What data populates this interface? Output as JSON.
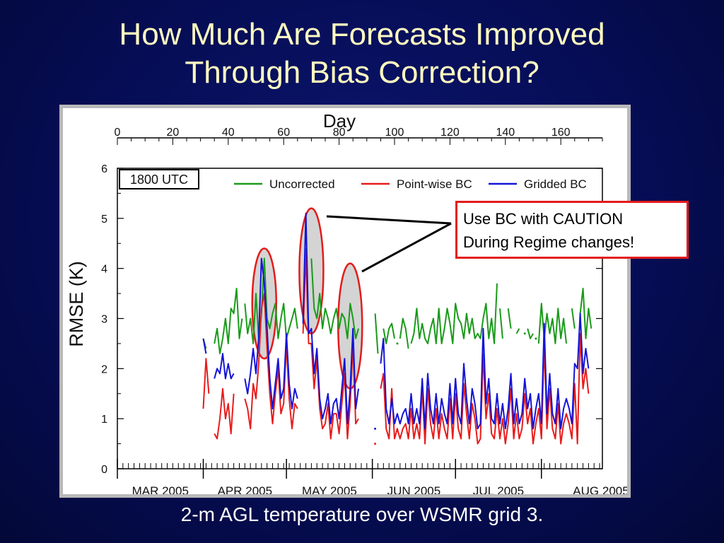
{
  "slide": {
    "title_line1": "How Much Are Forecasts Improved",
    "title_line2": "Through Bias Correction?",
    "caption": "2-m AGL temperature over WSMR grid 3."
  },
  "callout": {
    "line1": "Use BC with CAUTION",
    "line2": "During Regime changes!"
  },
  "colors": {
    "uncorrected": "#1a9a1a",
    "pointwise": "#e81c1c",
    "gridded": "#1414d6",
    "highlight_ring": "#e41b1b",
    "title": "#fffcc0"
  },
  "chart_data": {
    "type": "line",
    "top_axis_title": "Day",
    "ylabel": "RMSE (K)",
    "panel_label": "1800 UTC",
    "xlim": [
      0,
      175
    ],
    "ylim": [
      0,
      6
    ],
    "top_ticks": [
      0,
      20,
      40,
      60,
      80,
      100,
      120,
      140,
      160
    ],
    "y_ticks": [
      0,
      1,
      2,
      3,
      4,
      5,
      6
    ],
    "month_labels": [
      {
        "label": "MAR 2005",
        "day": 59
      },
      {
        "label": "APR 2005",
        "day": 90
      },
      {
        "label": "MAY 2005",
        "day": 120
      },
      {
        "label": "JUN 2005",
        "day": 151
      },
      {
        "label": "JUL 2005",
        "day": 181
      },
      {
        "label": "AUG 2005",
        "day": 212
      }
    ],
    "legend_position": "top",
    "highlight_days": [
      53,
      70,
      84
    ],
    "series": [
      {
        "name": "Uncorrected",
        "segments": [
          {
            "start": 31,
            "values": [
              2.6,
              2.4
            ]
          },
          {
            "start": 35,
            "values": [
              2.5,
              2.8,
              2.3,
              2.6,
              3.0,
              2.5,
              3.2,
              3.1,
              3.6,
              2.6,
              3.0
            ]
          },
          {
            "start": 46,
            "values": [
              3.3,
              2.7,
              3.0,
              2.5,
              3.5,
              2.6,
              3.1,
              4.2,
              3.0,
              2.8,
              3.1,
              3.3,
              2.6,
              3.0,
              3.3,
              2.6,
              2.8,
              3.0,
              3.2,
              2.8
            ]
          },
          {
            "start": 67,
            "values": [
              3.0,
              4.4
            ]
          },
          {
            "start": 70,
            "values": [
              4.2,
              3.2,
              3.0,
              3.5,
              2.8,
              3.2,
              3.0,
              2.7,
              3.0,
              3.2,
              2.8,
              3.1,
              3.0,
              2.6,
              3.3,
              3.0,
              2.6,
              2.8
            ]
          },
          {
            "start": 93,
            "values": [
              3.1,
              2.3
            ]
          },
          {
            "start": 96,
            "values": [
              2.8,
              2.5,
              2.8,
              2.9,
              2.6
            ]
          },
          {
            "start": 101,
            "values": [
              2.5
            ]
          },
          {
            "start": 102,
            "values": [
              2.6,
              3.0,
              2.8,
              2.4
            ]
          },
          {
            "start": 106,
            "values": [
              2.5,
              2.7,
              3.2,
              2.6,
              2.9,
              2.6,
              2.5,
              2.8,
              3.0,
              2.5,
              3.2,
              2.5,
              2.8,
              3.2,
              2.9,
              2.5,
              3.3,
              3.0,
              2.9,
              2.6,
              3.1,
              2.7,
              3.0,
              2.6,
              2.7,
              2.6,
              3.0,
              3.3,
              2.6,
              3.0,
              2.5,
              3.7
            ]
          },
          {
            "start": 138,
            "values": [
              3.2,
              2.6
            ]
          },
          {
            "start": 141,
            "values": [
              3.2,
              2.8
            ]
          },
          {
            "start": 144,
            "values": [
              2.7,
              2.8
            ]
          },
          {
            "start": 147,
            "values": [
              2.7
            ]
          },
          {
            "start": 148,
            "values": [
              2.8,
              2.6,
              2.7
            ]
          },
          {
            "start": 151,
            "values": [
              2.6
            ]
          },
          {
            "start": 152,
            "values": [
              2.5,
              3.3,
              2.6,
              3.1,
              2.7,
              3.0,
              2.5,
              3.2,
              2.6,
              3.0,
              2.5
            ]
          },
          {
            "start": 164,
            "values": [
              3.2,
              2.8
            ]
          },
          {
            "start": 167,
            "values": [
              3.1,
              3.6,
              2.6,
              3.2,
              2.8
            ]
          }
        ]
      },
      {
        "name": "Point-wise BC",
        "segments": [
          {
            "start": 31,
            "values": [
              1.2,
              2.2,
              1.5
            ]
          },
          {
            "start": 35,
            "values": [
              0.7,
              0.6,
              1.0,
              1.6,
              1.0,
              1.3,
              0.7,
              1.5
            ]
          },
          {
            "start": 46,
            "values": [
              1.4,
              1.2,
              0.8,
              1.7,
              1.4,
              2.1,
              3.2,
              3.5,
              2.4,
              1.5,
              0.9,
              1.5,
              2.0,
              1.1,
              1.3,
              2.5,
              1.4,
              0.8,
              1.3,
              1.2
            ]
          },
          {
            "start": 67,
            "values": [
              2.7,
              4.3,
              2.5,
              2.5,
              1.6,
              2.2,
              1.2,
              0.8,
              0.9,
              1.3,
              0.6,
              1.1,
              1.1,
              0.7,
              1.3,
              1.9,
              0.6,
              1.3,
              2.5,
              0.9,
              1.0
            ]
          },
          {
            "start": 93,
            "values": [
              0.5
            ]
          },
          {
            "start": 95,
            "values": [
              1.6,
              1.9,
              0.8,
              0.6,
              1.6,
              0.6,
              0.8,
              0.6,
              0.8,
              0.9,
              0.6,
              1.2,
              0.6,
              0.9,
              0.6,
              1.6,
              0.5,
              1.6,
              0.9,
              0.6,
              1.2,
              0.6,
              1.1,
              0.8,
              0.6,
              1.4,
              0.6,
              1.5,
              0.8,
              0.6,
              1.7,
              1.1,
              0.6,
              1.3,
              1.0,
              0.5,
              0.6,
              2.3,
              1.0,
              1.5,
              0.7,
              0.6,
              1.2,
              0.6,
              1.0,
              0.5,
              0.9,
              1.6,
              0.6,
              1.1,
              0.6,
              0.8,
              1.5,
              0.9,
              1.2,
              0.5,
              0.9,
              1.2,
              0.6,
              2.5,
              0.8,
              1.6,
              0.8,
              0.6,
              1.3,
              0.5,
              0.9,
              1.1,
              0.9,
              0.6,
              1.7,
              0.5,
              2.7,
              1.6,
              2.0,
              1.5
            ]
          }
        ]
      },
      {
        "name": "Gridded BC",
        "segments": [
          {
            "start": 31,
            "values": [
              2.6,
              2.3
            ]
          },
          {
            "start": 35,
            "values": [
              1.8,
              2.0,
              1.9,
              2.3,
              1.8,
              2.1,
              1.8,
              1.9
            ]
          },
          {
            "start": 46,
            "values": [
              1.8,
              1.5,
              1.9,
              2.4,
              1.9,
              2.6,
              4.2,
              3.7,
              2.8,
              1.8,
              1.2,
              1.7,
              2.2,
              1.4,
              1.6,
              2.7,
              1.7,
              1.2,
              1.6,
              1.4
            ]
          },
          {
            "start": 67,
            "values": [
              2.9,
              5.1,
              2.7,
              2.8,
              1.9,
              2.4,
              1.4,
              1.0,
              1.2,
              1.5,
              0.9,
              1.3,
              1.4,
              1.0,
              1.6,
              2.2,
              0.9,
              1.6,
              2.8,
              1.2,
              1.6
            ]
          },
          {
            "start": 93,
            "values": [
              0.8
            ]
          },
          {
            "start": 95,
            "values": [
              2.1,
              2.6,
              1.2,
              0.9,
              1.4,
              0.9,
              1.1,
              0.9,
              1.1,
              1.2,
              0.9,
              1.5,
              0.9,
              1.2,
              0.9,
              1.8,
              0.8,
              1.9,
              1.2,
              0.9,
              1.5,
              0.9,
              1.4,
              1.1,
              0.9,
              1.7,
              0.9,
              1.8,
              1.1,
              0.9,
              2.1,
              1.4,
              0.9,
              1.6,
              1.3,
              0.8,
              0.9,
              2.8,
              1.3,
              1.8,
              1.0,
              0.9,
              1.5,
              0.9,
              1.3,
              0.8,
              1.2,
              1.9,
              0.9,
              1.4,
              0.9,
              1.1,
              1.8,
              1.2,
              1.5,
              0.8,
              1.2,
              1.5,
              0.9,
              2.9,
              1.1,
              1.9,
              1.1,
              0.9,
              1.6,
              0.8,
              1.2,
              1.4,
              1.2,
              0.9,
              2.1,
              2.0,
              3.1,
              1.9,
              2.4,
              2.0
            ]
          }
        ]
      }
    ]
  }
}
